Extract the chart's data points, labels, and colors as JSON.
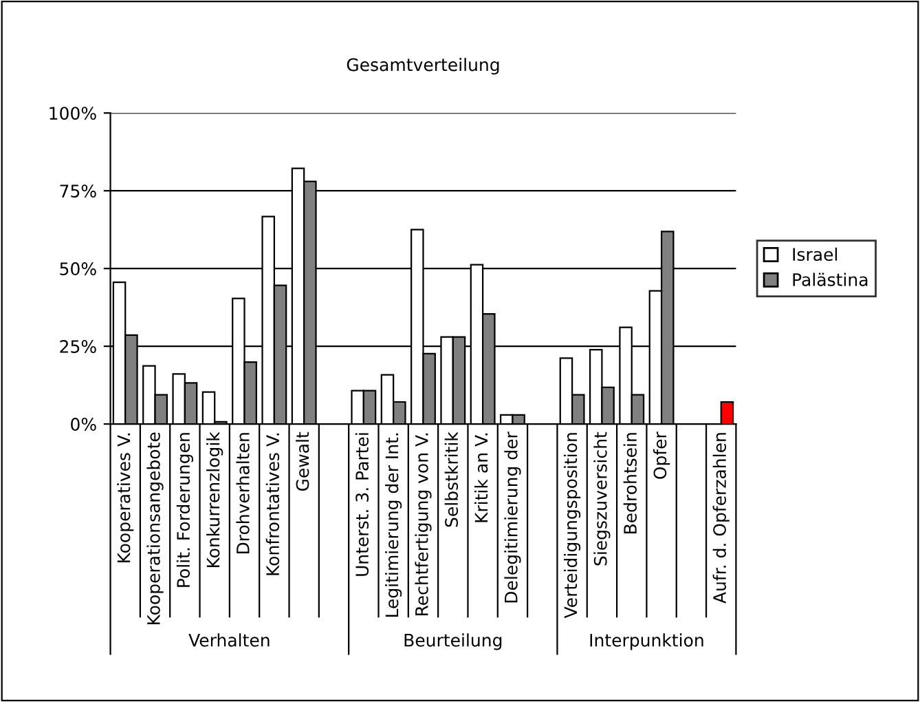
{
  "chart_data": {
    "type": "bar",
    "title": "Gesamtverteilung",
    "categories": [
      "Kooperatives V.",
      "Kooperationsangebote",
      "Polit. Forderungen",
      "Konkurrenzlogik",
      "Drohverhalten",
      "Konfrontatives V.",
      "Gewalt",
      null,
      "Unterst. 3. Partei",
      "Legitimierung der Int.",
      "Rechtfertigung von V.",
      "Selbstkritik",
      "Kritik an V.",
      "Delegitimierung der",
      null,
      "Verteidigungsposition",
      "Siegszuversicht",
      "Bedrohtsein",
      "Opfer",
      null,
      "Aufr. d. Opferzahlen"
    ],
    "series": [
      {
        "name": "Israel",
        "color": "#ffffff",
        "values": [
          45.6,
          18.7,
          16.1,
          10.3,
          40.4,
          66.7,
          82.2,
          null,
          10.7,
          15.8,
          62.5,
          28,
          51.2,
          2.9,
          null,
          21.2,
          23.9,
          31.1,
          42.8,
          null,
          null
        ]
      },
      {
        "name": "Palästina",
        "color": "#808080",
        "colors": [
          "#808080",
          "#808080",
          "#808080",
          "#808080",
          "#808080",
          "#808080",
          "#808080",
          "#808080",
          "#808080",
          "#808080",
          "#808080",
          "#808080",
          "#808080",
          "#808080",
          "#808080",
          "#808080",
          "#808080",
          "#808080",
          "#808080",
          "#808080",
          "#ff0000"
        ],
        "values": [
          28.6,
          9.4,
          13.2,
          0.7,
          19.9,
          44.6,
          78,
          null,
          10.7,
          7.1,
          22.6,
          28,
          35.4,
          2.9,
          null,
          9.4,
          11.8,
          9.4,
          61.9,
          null,
          7.1
        ]
      }
    ],
    "annotations": [
      "Verhalten",
      "Beurteilung",
      "Interpunktion"
    ],
    "ylim": [
      0,
      100
    ],
    "yticks": [
      {
        "value": 0,
        "label": "0%"
      },
      {
        "value": 25,
        "label": "25%"
      },
      {
        "value": 50,
        "label": "50%"
      },
      {
        "value": 75,
        "label": "75%"
      },
      {
        "value": 100,
        "label": "100%"
      }
    ],
    "grid": "y",
    "legend": "right"
  }
}
